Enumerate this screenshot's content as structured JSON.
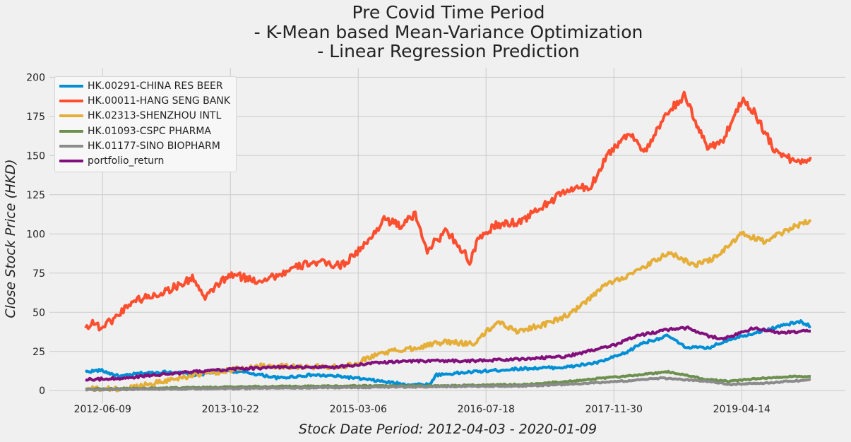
{
  "chart_data": {
    "type": "line",
    "title_lines": [
      "Pre Covid Time Period",
      "- K-Mean based Mean-Variance Optimization",
      "- Linear Regression Prediction"
    ],
    "xlabel": "Stock Date Period: 2012-04-03 - 2020-01-09",
    "ylabel": "Close Stock Price (HKD)",
    "x_range": [
      "2012-04-03",
      "2020-01-09"
    ],
    "ylim": [
      -8,
      206
    ],
    "y_ticks": [
      0,
      25,
      50,
      75,
      100,
      125,
      150,
      175,
      200
    ],
    "x_ticks": [
      "2012-06-09",
      "2013-10-22",
      "2015-03-06",
      "2016-07-18",
      "2017-11-30",
      "2019-04-14"
    ],
    "grid": true,
    "legend_position": "top-left",
    "series": [
      {
        "name": "HK.00291-CHINA RES BEER",
        "color": "#008fd5",
        "points": [
          [
            "2012-04-03",
            12
          ],
          [
            "2012-06-01",
            13
          ],
          [
            "2012-08-15",
            9
          ],
          [
            "2012-11-01",
            11
          ],
          [
            "2013-03-01",
            12
          ],
          [
            "2013-06-15",
            10
          ],
          [
            "2013-10-01",
            13
          ],
          [
            "2014-01-15",
            11
          ],
          [
            "2014-05-01",
            8
          ],
          [
            "2014-09-01",
            10
          ],
          [
            "2015-01-01",
            9
          ],
          [
            "2015-06-01",
            6
          ],
          [
            "2015-09-01",
            4
          ],
          [
            "2015-12-15",
            4
          ],
          [
            "2016-01-01",
            10
          ],
          [
            "2016-06-01",
            12
          ],
          [
            "2016-12-01",
            14
          ],
          [
            "2017-06-01",
            15
          ],
          [
            "2017-10-01",
            18
          ],
          [
            "2018-01-15",
            24
          ],
          [
            "2018-03-15",
            30
          ],
          [
            "2018-07-01",
            35
          ],
          [
            "2018-09-01",
            28
          ],
          [
            "2018-12-01",
            27
          ],
          [
            "2019-03-01",
            33
          ],
          [
            "2019-07-01",
            38
          ],
          [
            "2019-10-01",
            42
          ],
          [
            "2019-12-01",
            44
          ],
          [
            "2020-01-09",
            41
          ]
        ]
      },
      {
        "name": "HK.00011-HANG SENG BANK",
        "color": "#fc4f30",
        "points": [
          [
            "2012-04-03",
            40
          ],
          [
            "2012-05-01",
            44
          ],
          [
            "2012-06-01",
            40
          ],
          [
            "2012-08-01",
            47
          ],
          [
            "2012-10-01",
            57
          ],
          [
            "2013-01-01",
            61
          ],
          [
            "2013-04-01",
            67
          ],
          [
            "2013-06-01",
            72
          ],
          [
            "2013-07-15",
            58
          ],
          [
            "2013-09-01",
            68
          ],
          [
            "2013-11-01",
            74
          ],
          [
            "2014-02-01",
            70
          ],
          [
            "2014-05-01",
            74
          ],
          [
            "2014-09-01",
            82
          ],
          [
            "2015-01-01",
            80
          ],
          [
            "2015-04-15",
            95
          ],
          [
            "2015-06-15",
            110
          ],
          [
            "2015-08-15",
            105
          ],
          [
            "2015-10-15",
            112
          ],
          [
            "2015-12-01",
            90
          ],
          [
            "2016-02-15",
            102
          ],
          [
            "2016-04-15",
            90
          ],
          [
            "2016-05-15",
            82
          ],
          [
            "2016-06-15",
            95
          ],
          [
            "2016-08-15",
            105
          ],
          [
            "2016-12-01",
            108
          ],
          [
            "2017-03-01",
            118
          ],
          [
            "2017-06-01",
            128
          ],
          [
            "2017-09-01",
            130
          ],
          [
            "2017-11-01",
            150
          ],
          [
            "2018-02-01",
            165
          ],
          [
            "2018-04-01",
            152
          ],
          [
            "2018-07-01",
            178
          ],
          [
            "2018-09-01",
            188
          ],
          [
            "2018-10-15",
            172
          ],
          [
            "2018-12-01",
            155
          ],
          [
            "2019-02-01",
            160
          ],
          [
            "2019-04-15",
            186
          ],
          [
            "2019-06-01",
            178
          ],
          [
            "2019-08-15",
            155
          ],
          [
            "2019-10-15",
            148
          ],
          [
            "2019-12-01",
            146
          ],
          [
            "2020-01-09",
            149
          ]
        ]
      },
      {
        "name": "HK.02313-SHENZHOU INTL",
        "color": "#e5ae38",
        "points": [
          [
            "2012-04-03",
            1
          ],
          [
            "2012-09-01",
            1
          ],
          [
            "2013-01-01",
            5
          ],
          [
            "2013-06-01",
            10
          ],
          [
            "2013-09-01",
            12
          ],
          [
            "2014-03-01",
            16
          ],
          [
            "2014-09-01",
            15
          ],
          [
            "2015-02-01",
            16
          ],
          [
            "2015-06-01",
            24
          ],
          [
            "2015-10-01",
            27
          ],
          [
            "2016-02-01",
            31
          ],
          [
            "2016-06-01",
            30
          ],
          [
            "2016-09-01",
            44
          ],
          [
            "2016-11-15",
            38
          ],
          [
            "2017-03-01",
            42
          ],
          [
            "2017-06-01",
            48
          ],
          [
            "2017-08-01",
            55
          ],
          [
            "2017-11-01",
            68
          ],
          [
            "2018-03-01",
            76
          ],
          [
            "2018-07-01",
            88
          ],
          [
            "2018-10-15",
            80
          ],
          [
            "2019-01-01",
            85
          ],
          [
            "2019-04-15",
            100
          ],
          [
            "2019-07-15",
            95
          ],
          [
            "2019-10-15",
            103
          ],
          [
            "2020-01-09",
            109
          ]
        ]
      },
      {
        "name": "HK.01093-CSPC PHARMA",
        "color": "#6d904f",
        "points": [
          [
            "2012-04-03",
            1
          ],
          [
            "2013-01-01",
            1.5
          ],
          [
            "2014-01-01",
            2.5
          ],
          [
            "2015-01-01",
            3
          ],
          [
            "2016-01-01",
            3
          ],
          [
            "2017-01-01",
            4
          ],
          [
            "2017-06-01",
            6
          ],
          [
            "2018-01-01",
            9
          ],
          [
            "2018-07-01",
            12
          ],
          [
            "2018-12-01",
            7
          ],
          [
            "2019-03-01",
            6
          ],
          [
            "2019-07-01",
            8
          ],
          [
            "2019-11-01",
            9
          ],
          [
            "2020-01-09",
            9
          ]
        ]
      },
      {
        "name": "HK.01177-SINO BIOPHARM",
        "color": "#8b8b8b",
        "points": [
          [
            "2012-04-03",
            0.5
          ],
          [
            "2013-01-01",
            1
          ],
          [
            "2014-01-01",
            1.5
          ],
          [
            "2015-01-01",
            2
          ],
          [
            "2016-01-01",
            2.5
          ],
          [
            "2017-01-01",
            3
          ],
          [
            "2017-06-01",
            4
          ],
          [
            "2018-01-01",
            6
          ],
          [
            "2018-06-01",
            8
          ],
          [
            "2018-12-01",
            6
          ],
          [
            "2019-03-01",
            4
          ],
          [
            "2019-08-01",
            5
          ],
          [
            "2020-01-09",
            7
          ]
        ]
      },
      {
        "name": "portfolio_return",
        "color": "#810f7c",
        "points": [
          [
            "2012-04-03",
            7
          ],
          [
            "2012-09-01",
            8
          ],
          [
            "2013-01-01",
            10
          ],
          [
            "2013-06-01",
            12
          ],
          [
            "2013-12-01",
            14
          ],
          [
            "2014-06-01",
            15
          ],
          [
            "2014-12-01",
            15
          ],
          [
            "2015-06-01",
            18
          ],
          [
            "2015-12-01",
            19
          ],
          [
            "2016-06-01",
            19
          ],
          [
            "2016-12-01",
            20
          ],
          [
            "2017-06-01",
            22
          ],
          [
            "2017-12-01",
            29
          ],
          [
            "2018-03-01",
            35
          ],
          [
            "2018-07-01",
            39
          ],
          [
            "2018-09-15",
            40
          ],
          [
            "2018-12-01",
            35
          ],
          [
            "2019-02-01",
            33
          ],
          [
            "2019-06-01",
            40
          ],
          [
            "2019-09-01",
            37
          ],
          [
            "2020-01-09",
            38
          ]
        ]
      }
    ]
  }
}
